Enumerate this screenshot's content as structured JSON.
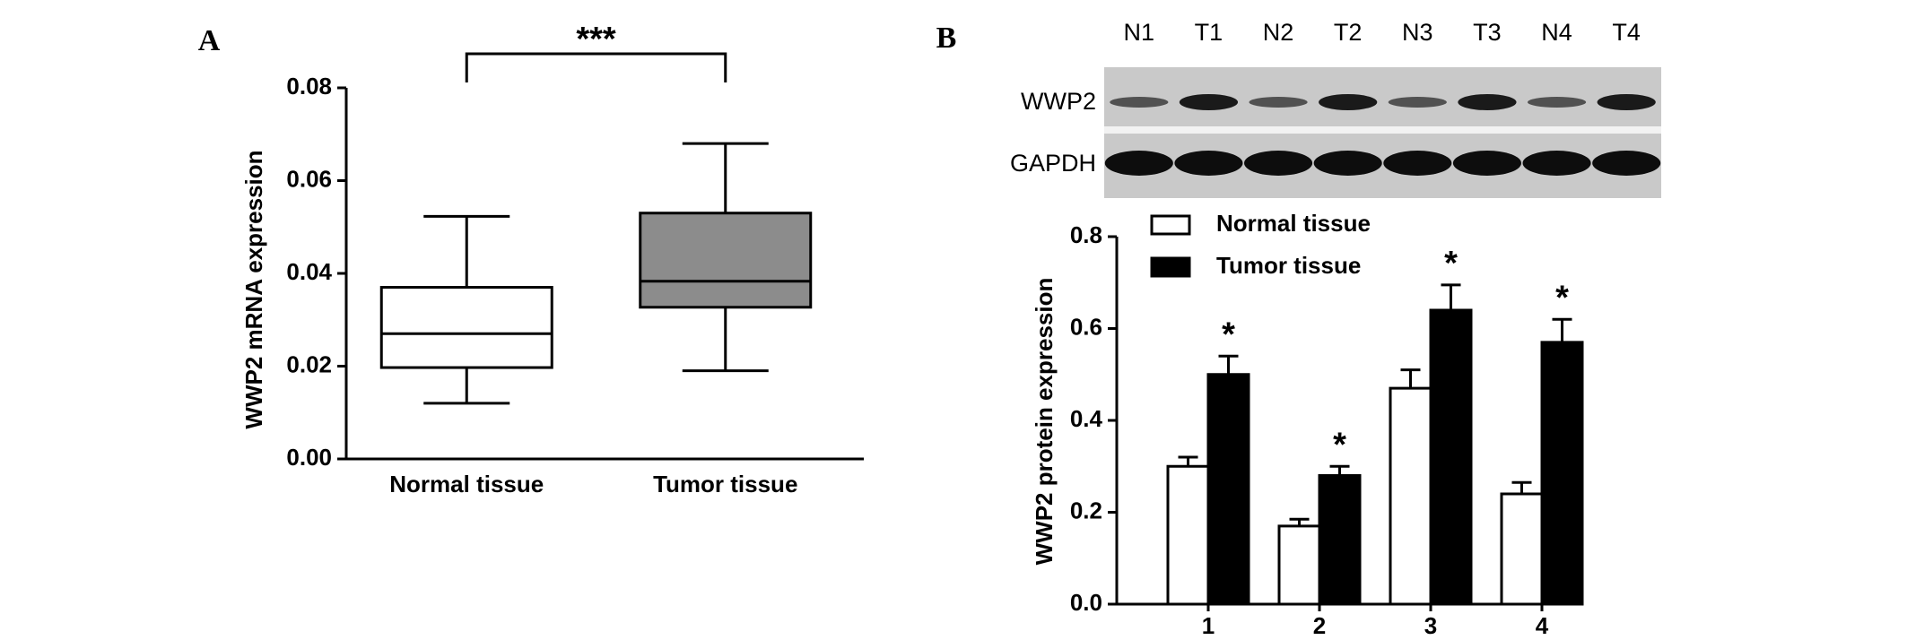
{
  "chart_data": [
    {
      "type": "box",
      "panel": "A",
      "ylabel": "WWP2 mRNA expression",
      "categories": [
        "Normal tissue",
        "Tumor tissue"
      ],
      "boxes": [
        {
          "whisker_low": 0.012,
          "q1": 0.0197,
          "median": 0.027,
          "q3": 0.037,
          "whisker_high": 0.0523,
          "color": "#ffffff"
        },
        {
          "whisker_low": 0.019,
          "q1": 0.0327,
          "median": 0.0383,
          "q3": 0.053,
          "whisker_high": 0.068,
          "color": "#8c8c8c"
        }
      ],
      "significance": "***",
      "ylim": [
        0,
        0.08
      ],
      "yticks": [
        {
          "value": 0,
          "label": "0.00"
        },
        {
          "value": 0.02,
          "label": "0.02"
        },
        {
          "value": 0.04,
          "label": "0.04"
        },
        {
          "value": 0.06,
          "label": "0.06"
        },
        {
          "value": 0.08,
          "label": "0.08"
        }
      ]
    },
    {
      "type": "bar",
      "panel": "B",
      "ylabel": "WWP2 protein expression",
      "blot": {
        "lanes": [
          "N1",
          "T1",
          "N2",
          "T2",
          "N3",
          "T3",
          "N4",
          "T4"
        ],
        "rows": [
          "WWP2",
          "GAPDH"
        ]
      },
      "categories": [
        "1",
        "2",
        "3",
        "4"
      ],
      "series": [
        {
          "name": "Normal tissue",
          "color": "#ffffff",
          "values": [
            0.3,
            0.17,
            0.47,
            0.24
          ],
          "errors": [
            0.02,
            0.015,
            0.04,
            0.025
          ]
        },
        {
          "name": "Tumor tissue",
          "color": "#000000",
          "values": [
            0.5,
            0.28,
            0.64,
            0.57
          ],
          "errors": [
            0.04,
            0.02,
            0.055,
            0.05
          ]
        }
      ],
      "annotations": [
        "*",
        "*",
        "*",
        "*"
      ],
      "legend": "upper left",
      "ylim": [
        0,
        0.8
      ],
      "yticks": [
        {
          "value": 0,
          "label": "0.0"
        },
        {
          "value": 0.2,
          "label": "0.2"
        },
        {
          "value": 0.4,
          "label": "0.4"
        },
        {
          "value": 0.6,
          "label": "0.6"
        },
        {
          "value": 0.8,
          "label": "0.8"
        }
      ]
    }
  ]
}
